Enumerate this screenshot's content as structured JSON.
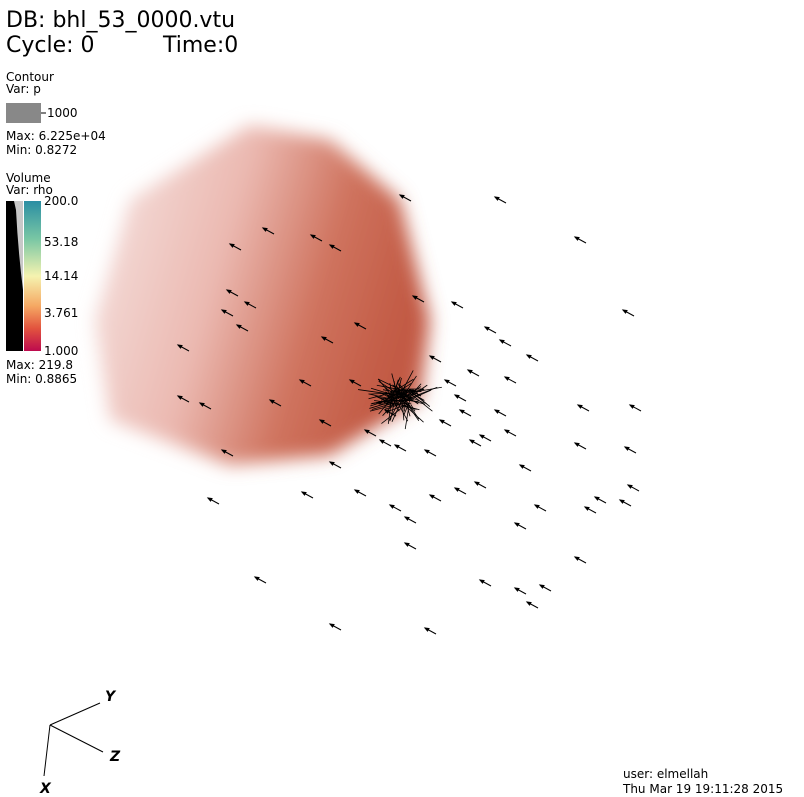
{
  "header": {
    "db": "DB: bhl_53_0000.vtu",
    "cycle": "Cycle: 0",
    "time": "Time:0"
  },
  "contour_legend": {
    "title": "Contour",
    "var": "Var: p",
    "level": "1000",
    "max": "Max: 6.225e+04",
    "min": "Min: 0.8272"
  },
  "volume_legend": {
    "title": "Volume",
    "var": "Var: rho",
    "ticks": [
      "200.0",
      "53.18",
      "14.14",
      "3.761",
      "1.000"
    ],
    "max": "Max: 219.8",
    "min": "Min: 0.8865"
  },
  "axes": {
    "y": "Y",
    "z": "Z",
    "x": "X"
  },
  "footer": {
    "user": "user: elmellah",
    "date": "Thu Mar 19 19:11:28 2015"
  }
}
